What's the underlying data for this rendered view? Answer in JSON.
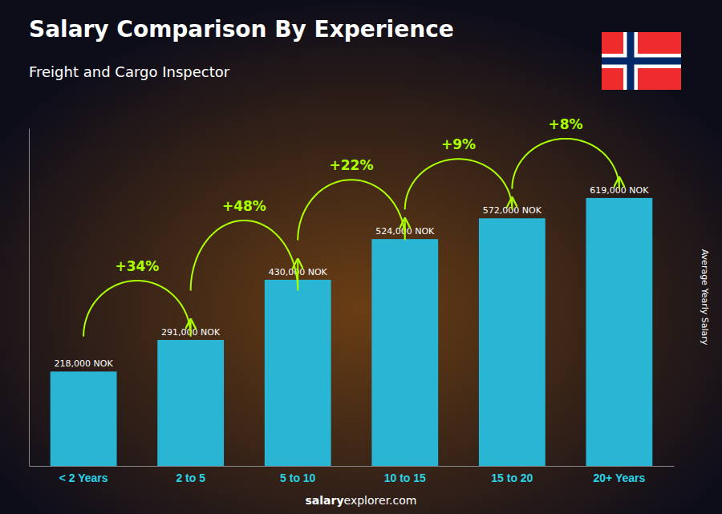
{
  "chart_data": {
    "type": "bar",
    "title": "Salary Comparison By Experience",
    "subtitle": "Freight and Cargo Inspector",
    "categories": [
      "< 2 Years",
      "2 to 5",
      "5 to 10",
      "10 to 15",
      "15 to 20",
      "20+ Years"
    ],
    "values": [
      218000,
      291000,
      430000,
      524000,
      572000,
      619000
    ],
    "value_labels": [
      "218,000 NOK",
      "291,000 NOK",
      "430,000 NOK",
      "524,000 NOK",
      "572,000 NOK",
      "619,000 NOK"
    ],
    "data_labels": true,
    "annotations": [
      "+34%",
      "+48%",
      "+22%",
      "+9%",
      "+8%"
    ],
    "ylabel": "Average Yearly Salary",
    "footer": [
      "salary",
      "explorer.com"
    ],
    "color": "#29b6d4",
    "ylim": [
      0,
      780000
    ],
    "tick_labels": "x",
    "grid": false
  }
}
